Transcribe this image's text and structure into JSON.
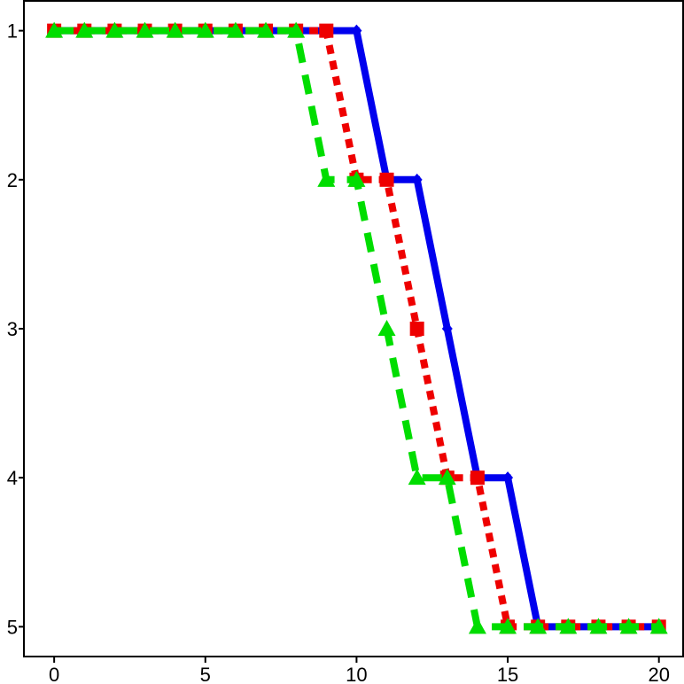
{
  "chart_data": {
    "type": "line",
    "title": "",
    "xlabel": "",
    "ylabel": "",
    "xlim": [
      -1,
      20.8
    ],
    "ylim": [
      0.8,
      5.2
    ],
    "y_inverted": true,
    "grid": false,
    "legend": "none",
    "x_ticks": [
      "0",
      "5",
      "10",
      "15",
      "20"
    ],
    "x_tick_values": [
      0,
      5,
      10,
      15,
      20
    ],
    "y_ticks": [
      "1",
      "2",
      "3",
      "4",
      "5"
    ],
    "y_tick_values": [
      1,
      2,
      3,
      4,
      5
    ],
    "x": [
      0,
      1,
      2,
      3,
      4,
      5,
      6,
      7,
      8,
      9,
      10,
      11,
      12,
      13,
      14,
      15,
      16,
      17,
      18,
      19,
      20
    ],
    "series": [
      {
        "color": "#0000ee",
        "marker": "diamond",
        "line_style": "solid",
        "values": [
          1,
          1,
          1,
          1,
          1,
          1,
          1,
          1,
          1,
          1,
          1,
          2,
          2,
          3,
          4,
          4,
          5,
          5,
          5,
          5,
          5
        ]
      },
      {
        "color": "#ee0000",
        "marker": "square",
        "line_style": "dotted",
        "values": [
          1,
          1,
          1,
          1,
          1,
          1,
          1,
          1,
          1,
          1,
          2,
          2,
          3,
          4,
          4,
          5,
          5,
          5,
          5,
          5,
          5
        ]
      },
      {
        "color": "#00dd00",
        "marker": "triangle",
        "line_style": "dashed",
        "values": [
          1,
          1,
          1,
          1,
          1,
          1,
          1,
          1,
          1,
          2,
          2,
          3,
          4,
          4,
          5,
          5,
          5,
          5,
          5,
          5,
          5
        ]
      }
    ]
  }
}
